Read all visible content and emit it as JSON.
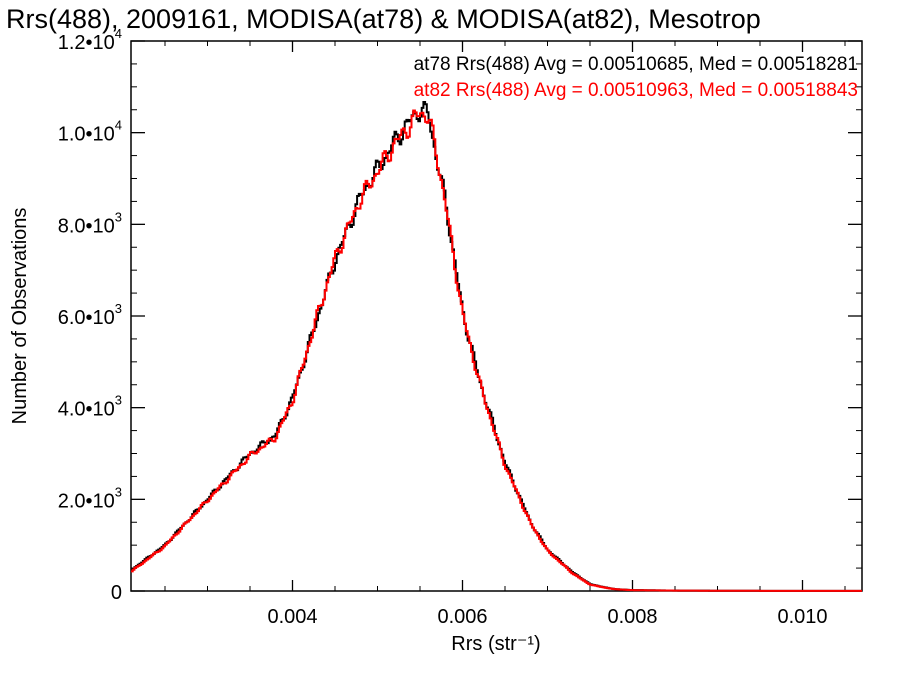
{
  "chart_data": {
    "type": "line",
    "step": true,
    "title": "Rrs(488), 2009161, MODISA(at78) & MODISA(at82), Mesotrop",
    "xlabel": "Rrs (str⁻¹)",
    "ylabel": "Number of Observations",
    "xlim": [
      0.0021,
      0.0107
    ],
    "ylim": [
      0,
      12000
    ],
    "x_ticks": [
      0.004,
      0.006,
      0.008,
      0.01
    ],
    "x_tick_labels": [
      "0.004",
      "0.006",
      "0.008",
      "0.010"
    ],
    "y_ticks": [
      0,
      2000,
      4000,
      6000,
      8000,
      10000,
      12000
    ],
    "y_tick_labels": [
      {
        "base": "0",
        "exp": ""
      },
      {
        "base": "2.0•10",
        "exp": "3"
      },
      {
        "base": "4.0•10",
        "exp": "3"
      },
      {
        "base": "6.0•10",
        "exp": "3"
      },
      {
        "base": "8.0•10",
        "exp": "3"
      },
      {
        "base": "1.0•10",
        "exp": "4"
      },
      {
        "base": "1.2•10",
        "exp": "4"
      }
    ],
    "grid": false,
    "legend_position": "top-right",
    "series": [
      {
        "name": "at78",
        "legend": "at78 Rrs(488) Avg = 0.00510685, Med = 0.00518281",
        "color": "#000000",
        "x": [
          0.0021,
          0.0025,
          0.003,
          0.0035,
          0.0038,
          0.004,
          0.0043,
          0.0045,
          0.0048,
          0.005,
          0.0052,
          0.0054,
          0.0055,
          0.0056,
          0.0057,
          0.0058,
          0.006,
          0.0062,
          0.0065,
          0.0068,
          0.007,
          0.0073,
          0.0075,
          0.0077,
          0.0078,
          0.008,
          0.0085,
          0.009,
          0.0095,
          0.01,
          0.0107
        ],
        "y": [
          450,
          1000,
          2000,
          3000,
          3400,
          4200,
          6000,
          7200,
          8600,
          9200,
          9800,
          10300,
          10500,
          10400,
          9400,
          8500,
          6100,
          4600,
          2800,
          1500,
          900,
          400,
          150,
          70,
          40,
          20,
          10,
          6,
          4,
          3,
          2
        ]
      },
      {
        "name": "at82",
        "legend": "at82 Rrs(488) Avg = 0.00510963, Med = 0.00518843",
        "color": "#ff0000",
        "x": [
          0.0021,
          0.0025,
          0.003,
          0.0035,
          0.0038,
          0.004,
          0.0043,
          0.0045,
          0.0048,
          0.005,
          0.0052,
          0.0054,
          0.0055,
          0.0056,
          0.0057,
          0.0058,
          0.006,
          0.0062,
          0.0065,
          0.0068,
          0.007,
          0.0073,
          0.0075,
          0.0077,
          0.0078,
          0.008,
          0.0085,
          0.009,
          0.0095,
          0.01,
          0.0107
        ],
        "y": [
          420,
          980,
          1980,
          2950,
          3350,
          4150,
          6050,
          7250,
          8550,
          9150,
          9750,
          10200,
          10450,
          10350,
          9500,
          8450,
          6050,
          4550,
          2750,
          1480,
          880,
          380,
          140,
          65,
          38,
          18,
          9,
          5,
          4,
          3,
          2
        ]
      }
    ]
  }
}
